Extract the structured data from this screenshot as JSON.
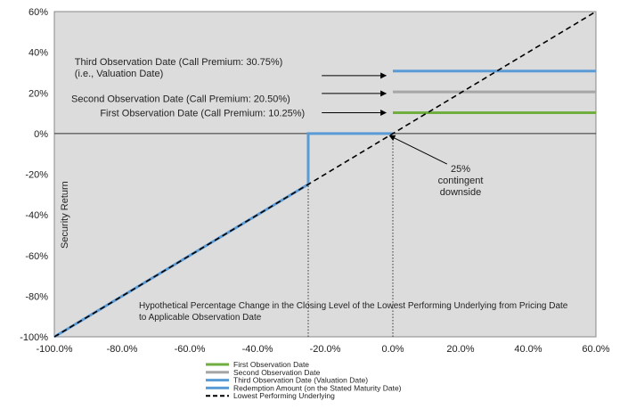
{
  "chart_data": {
    "type": "line",
    "title": "",
    "xlabel": "Hypothetical Percentage Change in the Closing Level of the Lowest Performing Underlying from Pricing Date to Applicable Observation Date",
    "xlabel_lines": [
      "Hypothetical Percentage Change in the Closing Level of the Lowest Performing Underlying from Pricing Date",
      "to Applicable Observation Date"
    ],
    "ylabel": "Security Return",
    "xlim": [
      -100,
      60
    ],
    "ylim": [
      -100,
      60
    ],
    "x_ticks": [
      -100,
      -80,
      -60,
      -40,
      -20,
      0,
      20,
      40,
      60
    ],
    "x_tick_labels": [
      "-100.0%",
      "-80.0%",
      "-60.0%",
      "-40.0%",
      "-20.0%",
      "0.0%",
      "20.0%",
      "40.0%",
      "60.0%"
    ],
    "y_ticks": [
      -100,
      -80,
      -60,
      -40,
      -20,
      0,
      20,
      40,
      60
    ],
    "y_tick_labels": [
      "-100%",
      "-80%",
      "-60%",
      "-40%",
      "-20%",
      "0%",
      "20%",
      "40%",
      "60%"
    ],
    "grid": false,
    "plot_background": "#dcdcdc",
    "legend_position": "bottom",
    "series": [
      {
        "name": "First Observation Date",
        "color": "#6fae3f",
        "dash": "solid",
        "points": [
          [
            0,
            10.25
          ],
          [
            60,
            10.25
          ]
        ]
      },
      {
        "name": "Second Observation Date",
        "color": "#a6a6a6",
        "dash": "solid",
        "points": [
          [
            0,
            20.5
          ],
          [
            60,
            20.5
          ]
        ]
      },
      {
        "name": "Third Observation Date (Valuation Date)",
        "color": "#5b9bd5",
        "dash": "solid",
        "points": [
          [
            0,
            30.75
          ],
          [
            60,
            30.75
          ]
        ]
      },
      {
        "name": "Redemption Amount (on the Stated Maturity Date)",
        "color": "#5b9bd5",
        "dash": "solid",
        "points": [
          [
            -100,
            -100
          ],
          [
            -25,
            -25
          ],
          [
            -25,
            0
          ],
          [
            0,
            0
          ]
        ]
      },
      {
        "name": "Lowest Performing Underlying",
        "color": "#000000",
        "dash": "dashed",
        "points": [
          [
            -100,
            -100
          ],
          [
            60,
            60
          ]
        ]
      }
    ],
    "reference_lines": [
      {
        "orientation": "vertical",
        "x": -25,
        "y_from": -100,
        "y_to": 0,
        "style": "dotted"
      },
      {
        "orientation": "vertical",
        "x": 0,
        "y_from": -100,
        "y_to": 0,
        "style": "dotted"
      },
      {
        "orientation": "horizontal",
        "y": 0,
        "style": "solid"
      }
    ],
    "annotations": [
      {
        "lines": [
          "Third Observation Date (Call Premium: 30.75%)",
          "(i.e., Valuation Date)"
        ],
        "align": "left",
        "anchor": [
          -94,
          33.8
        ],
        "arrow_from": [
          -21,
          28.5
        ],
        "arrow_to": [
          -2,
          28.5
        ]
      },
      {
        "lines": [
          "Second Observation Date (Call Premium: 20.50%)"
        ],
        "align": "left",
        "anchor": [
          -95,
          15.5
        ],
        "arrow_from": [
          -21,
          19.7
        ],
        "arrow_to": [
          -2,
          19.7
        ]
      },
      {
        "lines": [
          "First Observation Date (Call Premium: 10.25%)"
        ],
        "align": "right",
        "anchor": [
          -26,
          8.5
        ],
        "arrow_from": [
          -21,
          10.25
        ],
        "arrow_to": [
          -2,
          10.25
        ]
      },
      {
        "lines": [
          "25%",
          "contingent",
          "downside"
        ],
        "align": "center",
        "anchor": [
          20,
          -19
        ],
        "arrow_from": [
          16,
          -15
        ],
        "arrow_to": [
          -1,
          -1
        ]
      }
    ]
  }
}
